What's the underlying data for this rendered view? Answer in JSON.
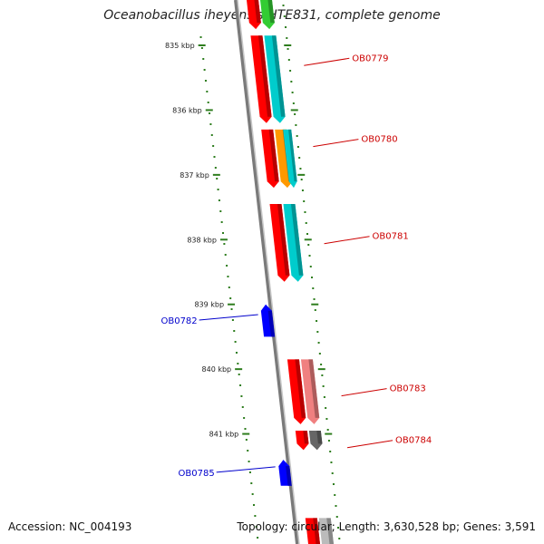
{
  "title": "Oceanobacillus iheyensis HTE831, complete genome",
  "footer": {
    "accession": "Accession: NC_004193",
    "summary": "Topology: circular; Length: 3,630,528 bp; Genes: 3,591"
  },
  "scale": {
    "start_kbp": 834.3,
    "end_kbp": 842.7,
    "ticks": [
      "835 kbp",
      "836 kbp",
      "837 kbp",
      "838 kbp",
      "839 kbp",
      "840 kbp",
      "841 kbp"
    ]
  },
  "colors": {
    "backbone": "#7a7a7a",
    "tick": "#2e7d1e",
    "forward_label": "#cc0000",
    "reverse_label": "#0000cc"
  },
  "features": [
    {
      "start": 834.0,
      "end": 834.75,
      "track": "fwd",
      "color": "#ff0000",
      "direction": "down"
    },
    {
      "start": 834.0,
      "end": 834.75,
      "track": "fwd2",
      "color": "#33cc33",
      "direction": "down"
    },
    {
      "start": 834.85,
      "end": 836.2,
      "track": "fwd",
      "color": "#ff0000",
      "direction": "down"
    },
    {
      "start": 834.85,
      "end": 836.2,
      "track": "fwd2",
      "color": "#00cccc",
      "direction": "down"
    },
    {
      "start": 836.3,
      "end": 837.2,
      "track": "fwd",
      "color": "#ff0000",
      "direction": "down"
    },
    {
      "start": 836.3,
      "end": 837.2,
      "track": "fwd2",
      "color": "#ff9900",
      "direction": "down"
    },
    {
      "start": 836.3,
      "end": 837.2,
      "track": "fwd3",
      "color": "#00cccc",
      "direction": "down"
    },
    {
      "start": 837.45,
      "end": 838.65,
      "track": "fwd",
      "color": "#ff0000",
      "direction": "down"
    },
    {
      "start": 837.45,
      "end": 838.65,
      "track": "fwd2",
      "color": "#00cccc",
      "direction": "down"
    },
    {
      "start": 839.0,
      "end": 839.5,
      "track": "rev",
      "color": "#0000ff",
      "direction": "up"
    },
    {
      "start": 839.85,
      "end": 840.85,
      "track": "fwd",
      "color": "#ff0000",
      "direction": "down"
    },
    {
      "start": 839.85,
      "end": 840.85,
      "track": "fwd2",
      "color": "#f08080",
      "direction": "down"
    },
    {
      "start": 840.95,
      "end": 841.25,
      "track": "fwd",
      "color": "#ff0000",
      "direction": "down"
    },
    {
      "start": 840.95,
      "end": 841.25,
      "track": "fwd2",
      "color": "#666666",
      "direction": "down"
    },
    {
      "start": 841.4,
      "end": 841.8,
      "track": "rev",
      "color": "#0000ff",
      "direction": "up"
    },
    {
      "start": 842.3,
      "end": 843.0,
      "track": "fwd",
      "color": "#ff0000",
      "direction": "down"
    },
    {
      "start": 842.3,
      "end": 843.0,
      "track": "fwd2",
      "color": "#bbbbbb",
      "direction": "down"
    }
  ],
  "labels": [
    {
      "text": "OB0779",
      "pos": 835.2,
      "side": "right",
      "color": "#cc0000"
    },
    {
      "text": "OB0780",
      "pos": 836.45,
      "side": "right",
      "color": "#cc0000"
    },
    {
      "text": "OB0781",
      "pos": 837.95,
      "side": "right",
      "color": "#cc0000"
    },
    {
      "text": "OB0782",
      "pos": 839.2,
      "side": "left",
      "color": "#0000cc"
    },
    {
      "text": "OB0783",
      "pos": 840.3,
      "side": "right",
      "color": "#cc0000"
    },
    {
      "text": "OB0784",
      "pos": 841.1,
      "side": "right",
      "color": "#cc0000"
    },
    {
      "text": "OB0785",
      "pos": 841.55,
      "side": "left",
      "color": "#0000cc"
    }
  ]
}
